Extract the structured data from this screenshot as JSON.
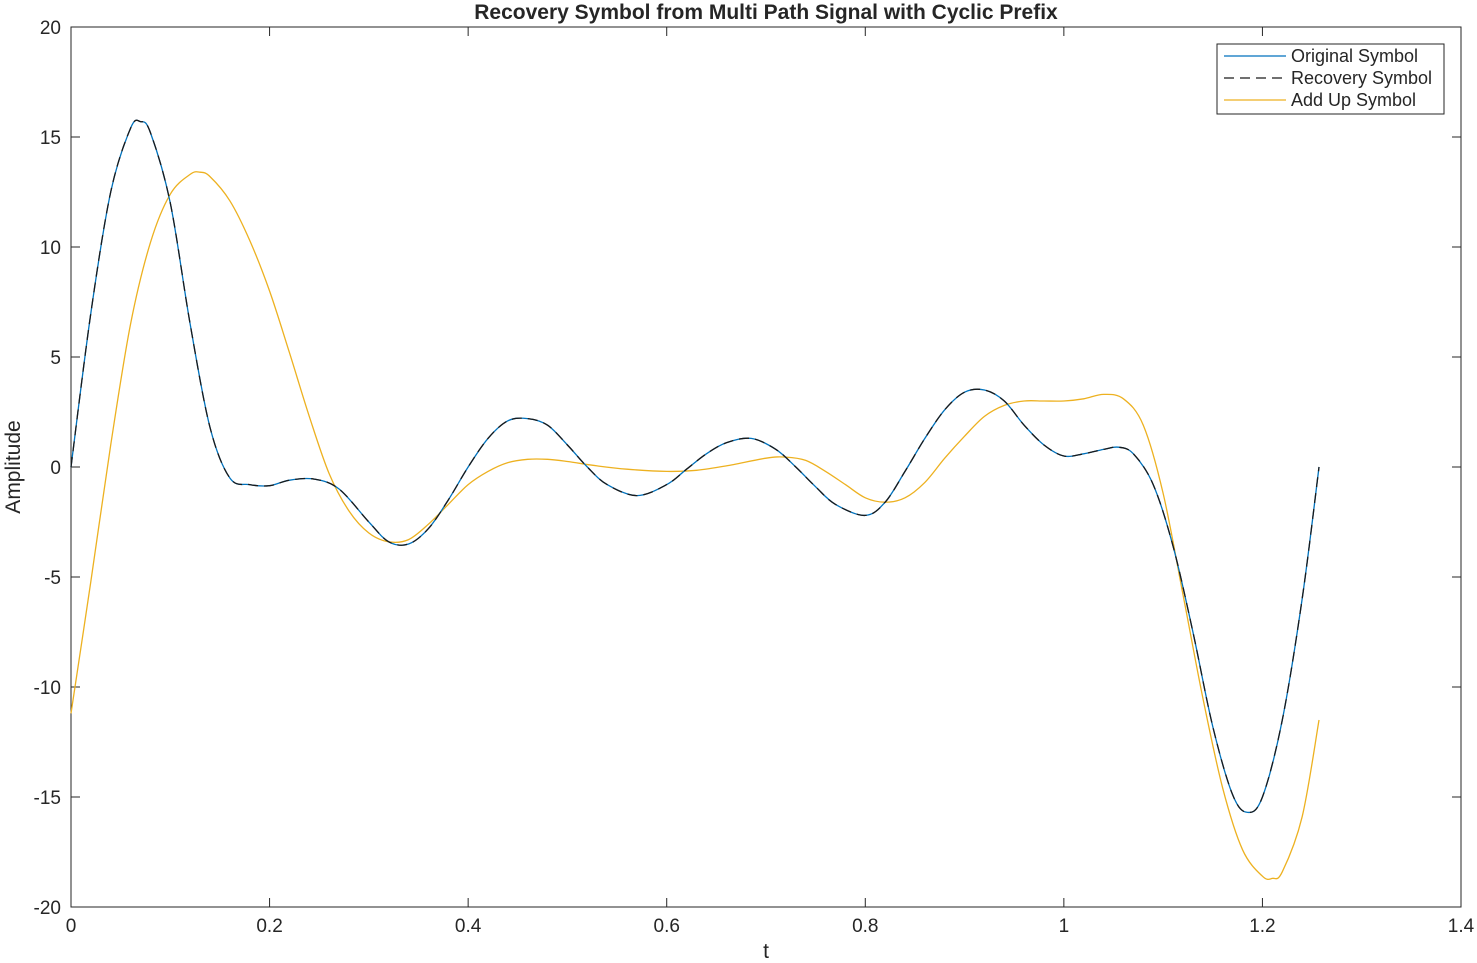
{
  "chart_data": {
    "type": "line",
    "title": "Recovery Symbol from Multi Path Signal with Cyclic Prefix",
    "xlabel": "t",
    "ylabel": "Amplitude",
    "xlim": [
      0,
      1.4
    ],
    "ylim": [
      -20,
      20
    ],
    "xticks": [
      "0",
      "0.2",
      "0.4",
      "0.6",
      "0.8",
      "1",
      "1.2",
      "1.4"
    ],
    "yticks": [
      "20",
      "15",
      "10",
      "5",
      "0",
      "-5",
      "-10",
      "-15",
      "-20"
    ],
    "grid": false,
    "legend_position": "top-right",
    "series": [
      {
        "name": "Original Symbol",
        "color": "#0072bd",
        "dash": "solid",
        "x": [
          0,
          0.02,
          0.04,
          0.06,
          0.07,
          0.08,
          0.1,
          0.12,
          0.14,
          0.16,
          0.18,
          0.2,
          0.22,
          0.245,
          0.27,
          0.3,
          0.32,
          0.34,
          0.36,
          0.38,
          0.4,
          0.42,
          0.44,
          0.46,
          0.48,
          0.5,
          0.52,
          0.54,
          0.57,
          0.6,
          0.62,
          0.64,
          0.66,
          0.685,
          0.71,
          0.73,
          0.75,
          0.77,
          0.8,
          0.82,
          0.84,
          0.86,
          0.88,
          0.9,
          0.92,
          0.94,
          0.96,
          0.98,
          1.0,
          1.02,
          1.04,
          1.055,
          1.07,
          1.09,
          1.11,
          1.13,
          1.15,
          1.17,
          1.185,
          1.2,
          1.22,
          1.24,
          1.257
        ],
        "values": [
          0,
          7,
          12.5,
          15.4,
          15.7,
          15.2,
          12.0,
          6.5,
          1.8,
          -0.5,
          -0.8,
          -0.85,
          -0.6,
          -0.55,
          -1.0,
          -2.5,
          -3.4,
          -3.5,
          -2.8,
          -1.5,
          0.0,
          1.3,
          2.1,
          2.2,
          1.9,
          1.0,
          0.0,
          -0.8,
          -1.3,
          -0.8,
          -0.1,
          0.6,
          1.1,
          1.3,
          0.8,
          0.0,
          -0.9,
          -1.7,
          -2.2,
          -1.6,
          -0.2,
          1.3,
          2.6,
          3.4,
          3.5,
          3.0,
          1.9,
          1.0,
          0.5,
          0.6,
          0.8,
          0.9,
          0.6,
          -0.8,
          -3.6,
          -7.5,
          -11.8,
          -14.9,
          -15.7,
          -15.0,
          -11.5,
          -6.0,
          0
        ]
      },
      {
        "name": "Recovery Symbol",
        "color": "#1a1a1a",
        "dash": "dashed",
        "x": [
          0,
          0.02,
          0.04,
          0.06,
          0.07,
          0.08,
          0.1,
          0.12,
          0.14,
          0.16,
          0.18,
          0.2,
          0.22,
          0.245,
          0.27,
          0.3,
          0.32,
          0.34,
          0.36,
          0.38,
          0.4,
          0.42,
          0.44,
          0.46,
          0.48,
          0.5,
          0.52,
          0.54,
          0.57,
          0.6,
          0.62,
          0.64,
          0.66,
          0.685,
          0.71,
          0.73,
          0.75,
          0.77,
          0.8,
          0.82,
          0.84,
          0.86,
          0.88,
          0.9,
          0.92,
          0.94,
          0.96,
          0.98,
          1.0,
          1.02,
          1.04,
          1.055,
          1.07,
          1.09,
          1.11,
          1.13,
          1.15,
          1.17,
          1.185,
          1.2,
          1.22,
          1.24,
          1.257
        ],
        "values": [
          0,
          7,
          12.5,
          15.4,
          15.7,
          15.2,
          12.0,
          6.5,
          1.8,
          -0.5,
          -0.8,
          -0.85,
          -0.6,
          -0.55,
          -1.0,
          -2.5,
          -3.4,
          -3.5,
          -2.8,
          -1.5,
          0.0,
          1.3,
          2.1,
          2.2,
          1.9,
          1.0,
          0.0,
          -0.8,
          -1.3,
          -0.8,
          -0.1,
          0.6,
          1.1,
          1.3,
          0.8,
          0.0,
          -0.9,
          -1.7,
          -2.2,
          -1.6,
          -0.2,
          1.3,
          2.6,
          3.4,
          3.5,
          3.0,
          1.9,
          1.0,
          0.5,
          0.6,
          0.8,
          0.9,
          0.6,
          -0.8,
          -3.6,
          -7.5,
          -11.8,
          -14.9,
          -15.7,
          -15.0,
          -11.5,
          -6.0,
          0
        ]
      },
      {
        "name": "Add Up Symbol",
        "color": "#edb120",
        "dash": "solid",
        "x": [
          0,
          0.02,
          0.04,
          0.06,
          0.08,
          0.1,
          0.12,
          0.13,
          0.14,
          0.16,
          0.18,
          0.2,
          0.22,
          0.24,
          0.26,
          0.28,
          0.3,
          0.32,
          0.34,
          0.36,
          0.38,
          0.4,
          0.42,
          0.44,
          0.46,
          0.48,
          0.5,
          0.53,
          0.56,
          0.6,
          0.63,
          0.66,
          0.7,
          0.72,
          0.74,
          0.76,
          0.78,
          0.8,
          0.82,
          0.84,
          0.86,
          0.88,
          0.9,
          0.92,
          0.94,
          0.96,
          0.98,
          1.0,
          1.02,
          1.04,
          1.06,
          1.08,
          1.1,
          1.12,
          1.14,
          1.16,
          1.18,
          1.2,
          1.21,
          1.22,
          1.24,
          1.257
        ],
        "values": [
          -11.2,
          -5.2,
          1.0,
          6.5,
          10.2,
          12.4,
          13.3,
          13.4,
          13.2,
          12.1,
          10.3,
          8.0,
          5.2,
          2.3,
          -0.3,
          -2.0,
          -3.0,
          -3.4,
          -3.3,
          -2.6,
          -1.7,
          -0.8,
          -0.2,
          0.2,
          0.35,
          0.35,
          0.25,
          0.05,
          -0.1,
          -0.2,
          -0.15,
          0.05,
          0.4,
          0.45,
          0.3,
          -0.2,
          -0.8,
          -1.4,
          -1.6,
          -1.4,
          -0.7,
          0.4,
          1.4,
          2.3,
          2.8,
          3.0,
          3.0,
          3.0,
          3.1,
          3.3,
          3.1,
          1.9,
          -1.2,
          -5.8,
          -10.5,
          -14.6,
          -17.4,
          -18.6,
          -18.7,
          -18.4,
          -15.9,
          -11.5
        ]
      }
    ]
  }
}
